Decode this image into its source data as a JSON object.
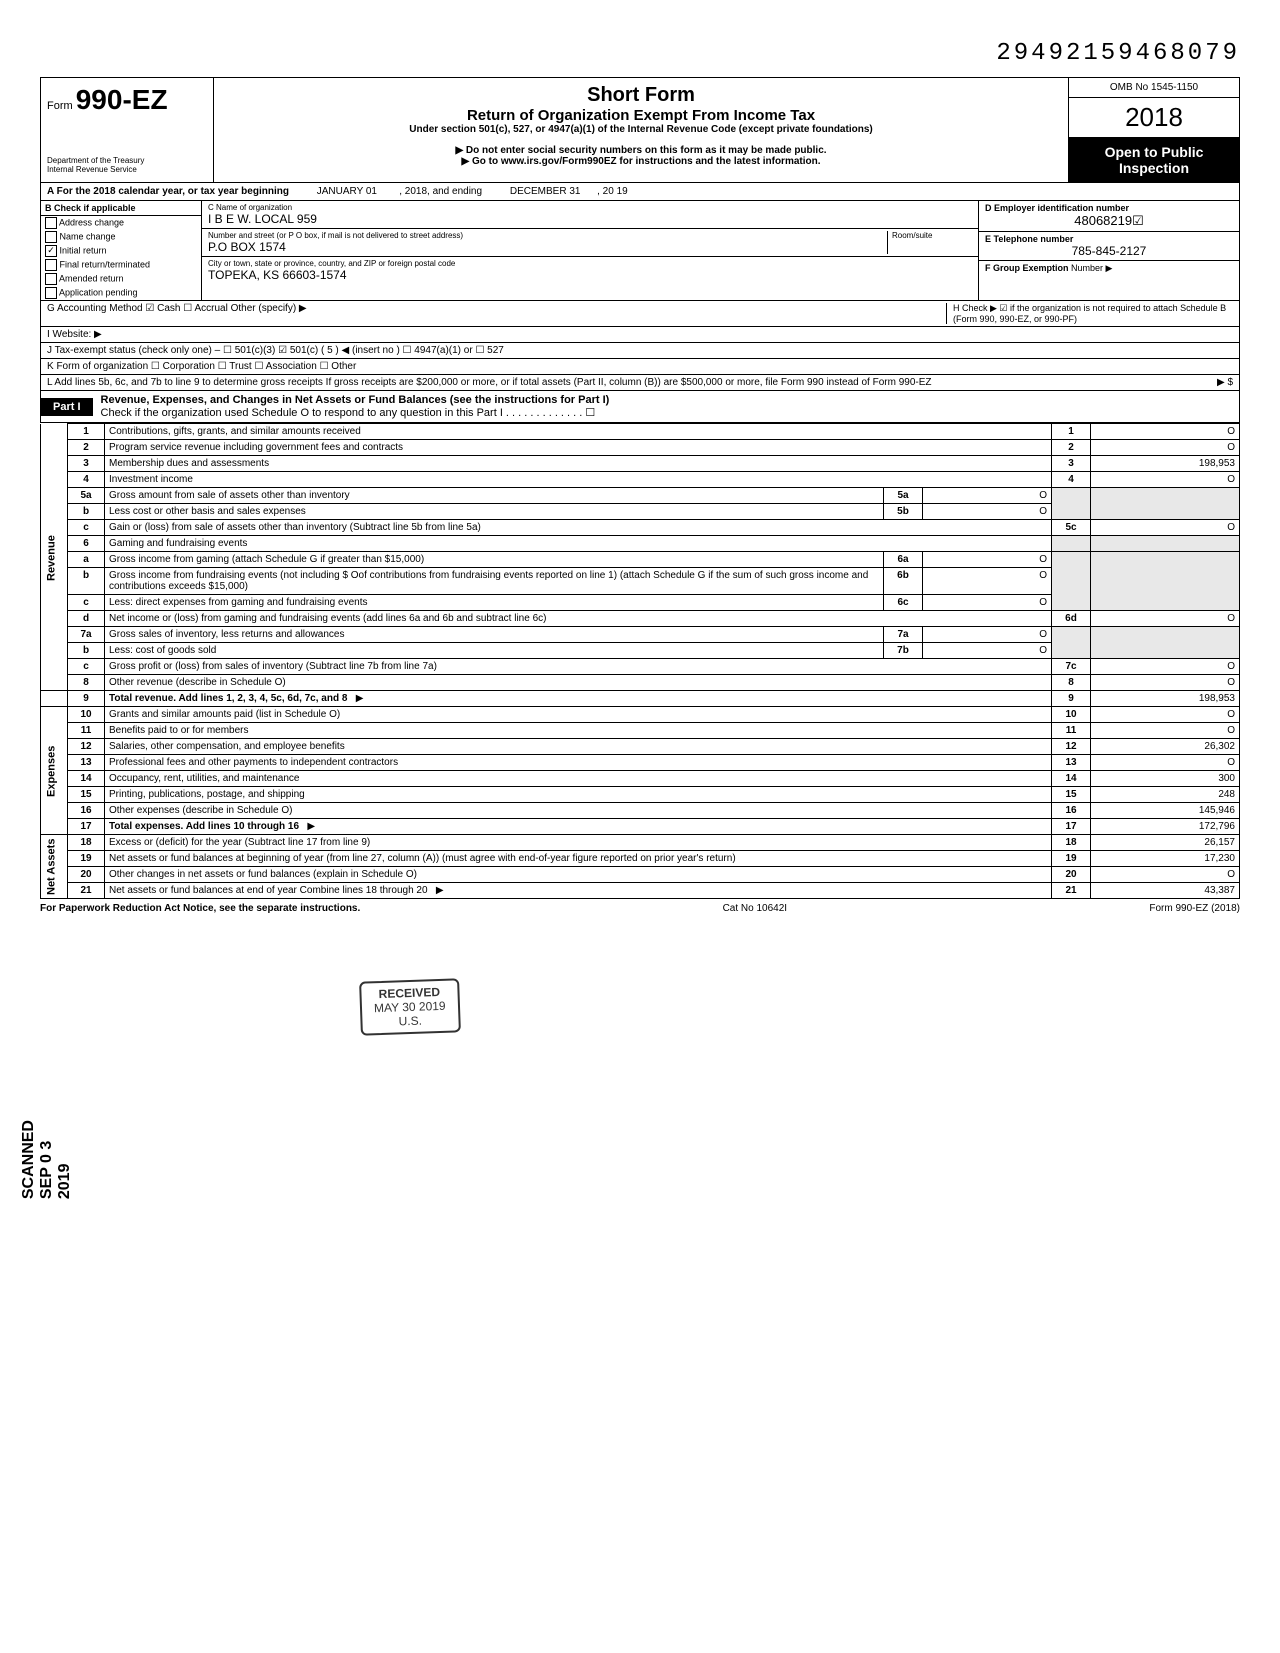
{
  "topright_code": "29492159468079",
  "header": {
    "form_prefix": "Form",
    "form_number": "990-EZ",
    "title": "Short Form",
    "subtitle": "Return of Organization Exempt From Income Tax",
    "under": "Under section 501(c), 527, or 4947(a)(1) of the Internal Revenue Code (except private foundations)",
    "note1": "▶ Do not enter social security numbers on this form as it may be made public.",
    "note2": "▶ Go to www.irs.gov/Form990EZ for instructions and the latest information.",
    "dept": "Department of the Treasury\nInternal Revenue Service",
    "omb": "OMB No 1545-1150",
    "year": "2018",
    "open": "Open to Public Inspection"
  },
  "rowA": {
    "label_left": "A For the 2018 calendar year, or tax year beginning",
    "begin": "JANUARY 01",
    "mid": ", 2018, and ending",
    "end": "DECEMBER 31",
    "tail": ", 20  19"
  },
  "colB": {
    "header": "B Check if applicable",
    "items": [
      "Address change",
      "Name change",
      "Initial return",
      "Final return/terminated",
      "Amended return",
      "Application pending"
    ],
    "checked_index": 2
  },
  "colC": {
    "name_lbl": "C Name of organization",
    "name_val": "I B E W. LOCAL 959",
    "street_lbl": "Number and street (or P O  box, if mail is not delivered to street address)",
    "room_lbl": "Room/suite",
    "street_val": "P.O BOX 1574",
    "city_lbl": "City or town, state or province, country, and ZIP or foreign postal code",
    "city_val": "TOPEKA, KS 66603-1574"
  },
  "colDE": {
    "d_lbl": "D Employer identification number",
    "d_val": "48068219☑",
    "e_lbl": "E Telephone number",
    "e_val": "785-845-2127",
    "f_lbl": "F Group Exemption",
    "f_val": "Number ▶"
  },
  "meta": {
    "g": "G  Accounting Method    ☑ Cash    ☐ Accrual    Other (specify) ▶",
    "h": "H  Check ▶ ☑ if the organization is not required to attach Schedule B (Form 990, 990-EZ, or 990-PF)",
    "i": "I   Website: ▶",
    "j": "J  Tax-exempt status (check only one) –  ☐ 501(c)(3)   ☑ 501(c) (  5  ) ◀ (insert no )  ☐ 4947(a)(1) or   ☐ 527",
    "k": "K  Form of organization   ☐ Corporation   ☐ Trust              ☐ Association      ☐ Other",
    "l": "L  Add lines 5b, 6c, and 7b to line 9 to determine gross receipts  If gross receipts are $200,000 or more, or if total assets (Part II, column (B)) are $500,000 or more, file Form 990 instead of Form 990-EZ",
    "l_arrow": "▶  $"
  },
  "part1": {
    "label": "Part I",
    "title": "Revenue, Expenses, and Changes in Net Assets or Fund Balances (see the instructions for Part I)",
    "check_line": "Check if the organization used Schedule O to respond to any question in this Part I . . . . . . . . . . . . . ☐"
  },
  "sides": {
    "revenue": "Revenue",
    "expenses": "Expenses",
    "netassets": "Net Assets"
  },
  "lines": {
    "l1": {
      "n": "1",
      "d": "Contributions, gifts, grants, and similar amounts received",
      "amt": "O"
    },
    "l2": {
      "n": "2",
      "d": "Program service revenue including government fees and contracts",
      "amt": "O"
    },
    "l3": {
      "n": "3",
      "d": "Membership dues and assessments",
      "amt": "198,953"
    },
    "l4": {
      "n": "4",
      "d": "Investment income",
      "amt": "O"
    },
    "l5a": {
      "n": "5a",
      "d": "Gross amount from sale of assets other than inventory",
      "sub": "5a",
      "subv": "O"
    },
    "l5b": {
      "n": "b",
      "d": "Less  cost or other basis and sales expenses",
      "sub": "5b",
      "subv": "O"
    },
    "l5c": {
      "n": "c",
      "d": "Gain or (loss) from sale of assets other than inventory (Subtract line 5b from line 5a)",
      "ln": "5c",
      "amt": "O"
    },
    "l6": {
      "n": "6",
      "d": "Gaming and fundraising events"
    },
    "l6a": {
      "n": "a",
      "d": "Gross income from gaming (attach Schedule G if greater than $15,000)",
      "sub": "6a",
      "subv": "O"
    },
    "l6b": {
      "n": "b",
      "d": "Gross income from fundraising events (not including  $                    Oof contributions from fundraising events reported on line 1) (attach Schedule G if the sum of such gross income and contributions exceeds $15,000)",
      "sub": "6b",
      "subv": "O"
    },
    "l6c": {
      "n": "c",
      "d": "Less: direct expenses from gaming and fundraising events",
      "sub": "6c",
      "subv": "O"
    },
    "l6d": {
      "n": "d",
      "d": "Net income or (loss) from gaming and fundraising events (add lines 6a and 6b and subtract line 6c)",
      "ln": "6d",
      "amt": "O"
    },
    "l7a": {
      "n": "7a",
      "d": "Gross sales of inventory, less returns and allowances",
      "sub": "7a",
      "subv": "O"
    },
    "l7b": {
      "n": "b",
      "d": "Less: cost of goods sold",
      "sub": "7b",
      "subv": "O"
    },
    "l7c": {
      "n": "c",
      "d": "Gross profit or (loss) from sales of inventory (Subtract line 7b from line 7a)",
      "ln": "7c",
      "amt": "O"
    },
    "l8": {
      "n": "8",
      "d": "Other revenue (describe in Schedule O)",
      "ln": "8",
      "amt": "O"
    },
    "l9": {
      "n": "9",
      "d": "Total revenue. Add lines 1, 2, 3, 4, 5c, 6d, 7c, and 8",
      "ln": "9",
      "amt": "198,953"
    },
    "l10": {
      "n": "10",
      "d": "Grants and similar amounts paid (list in Schedule O)",
      "ln": "10",
      "amt": "O"
    },
    "l11": {
      "n": "11",
      "d": "Benefits paid to or for members",
      "ln": "11",
      "amt": "O"
    },
    "l12": {
      "n": "12",
      "d": "Salaries, other compensation, and employee benefits",
      "ln": "12",
      "amt": "26,302"
    },
    "l13": {
      "n": "13",
      "d": "Professional fees and other payments to independent contractors",
      "ln": "13",
      "amt": "O"
    },
    "l14": {
      "n": "14",
      "d": "Occupancy, rent, utilities, and maintenance",
      "ln": "14",
      "amt": "300"
    },
    "l15": {
      "n": "15",
      "d": "Printing, publications, postage, and shipping",
      "ln": "15",
      "amt": "248"
    },
    "l16": {
      "n": "16",
      "d": "Other expenses (describe in Schedule O)",
      "ln": "16",
      "amt": "145,946"
    },
    "l17": {
      "n": "17",
      "d": "Total expenses. Add lines 10 through 16",
      "ln": "17",
      "amt": "172,796"
    },
    "l18": {
      "n": "18",
      "d": "Excess or (deficit) for the year (Subtract line 17 from line 9)",
      "ln": "18",
      "amt": "26,157"
    },
    "l19": {
      "n": "19",
      "d": "Net assets or fund balances at beginning of year (from line 27, column (A)) (must agree with end-of-year figure reported on prior year's return)",
      "ln": "19",
      "amt": "17,230"
    },
    "l20": {
      "n": "20",
      "d": "Other changes in net assets or fund balances (explain in Schedule O)",
      "ln": "20",
      "amt": "O"
    },
    "l21": {
      "n": "21",
      "d": "Net assets or fund balances at end of year  Combine lines 18 through 20",
      "ln": "21",
      "amt": "43,387"
    }
  },
  "footer": {
    "left": "For Paperwork Reduction Act Notice, see the separate instructions.",
    "center": "Cat No 10642I",
    "right": "Form 990-EZ (2018)"
  },
  "stamp": {
    "line1": "RECEIVED",
    "line2": "MAY 30 2019",
    "line3": "U.S."
  },
  "scanned": "SCANNED  SEP 0 3 2019"
}
